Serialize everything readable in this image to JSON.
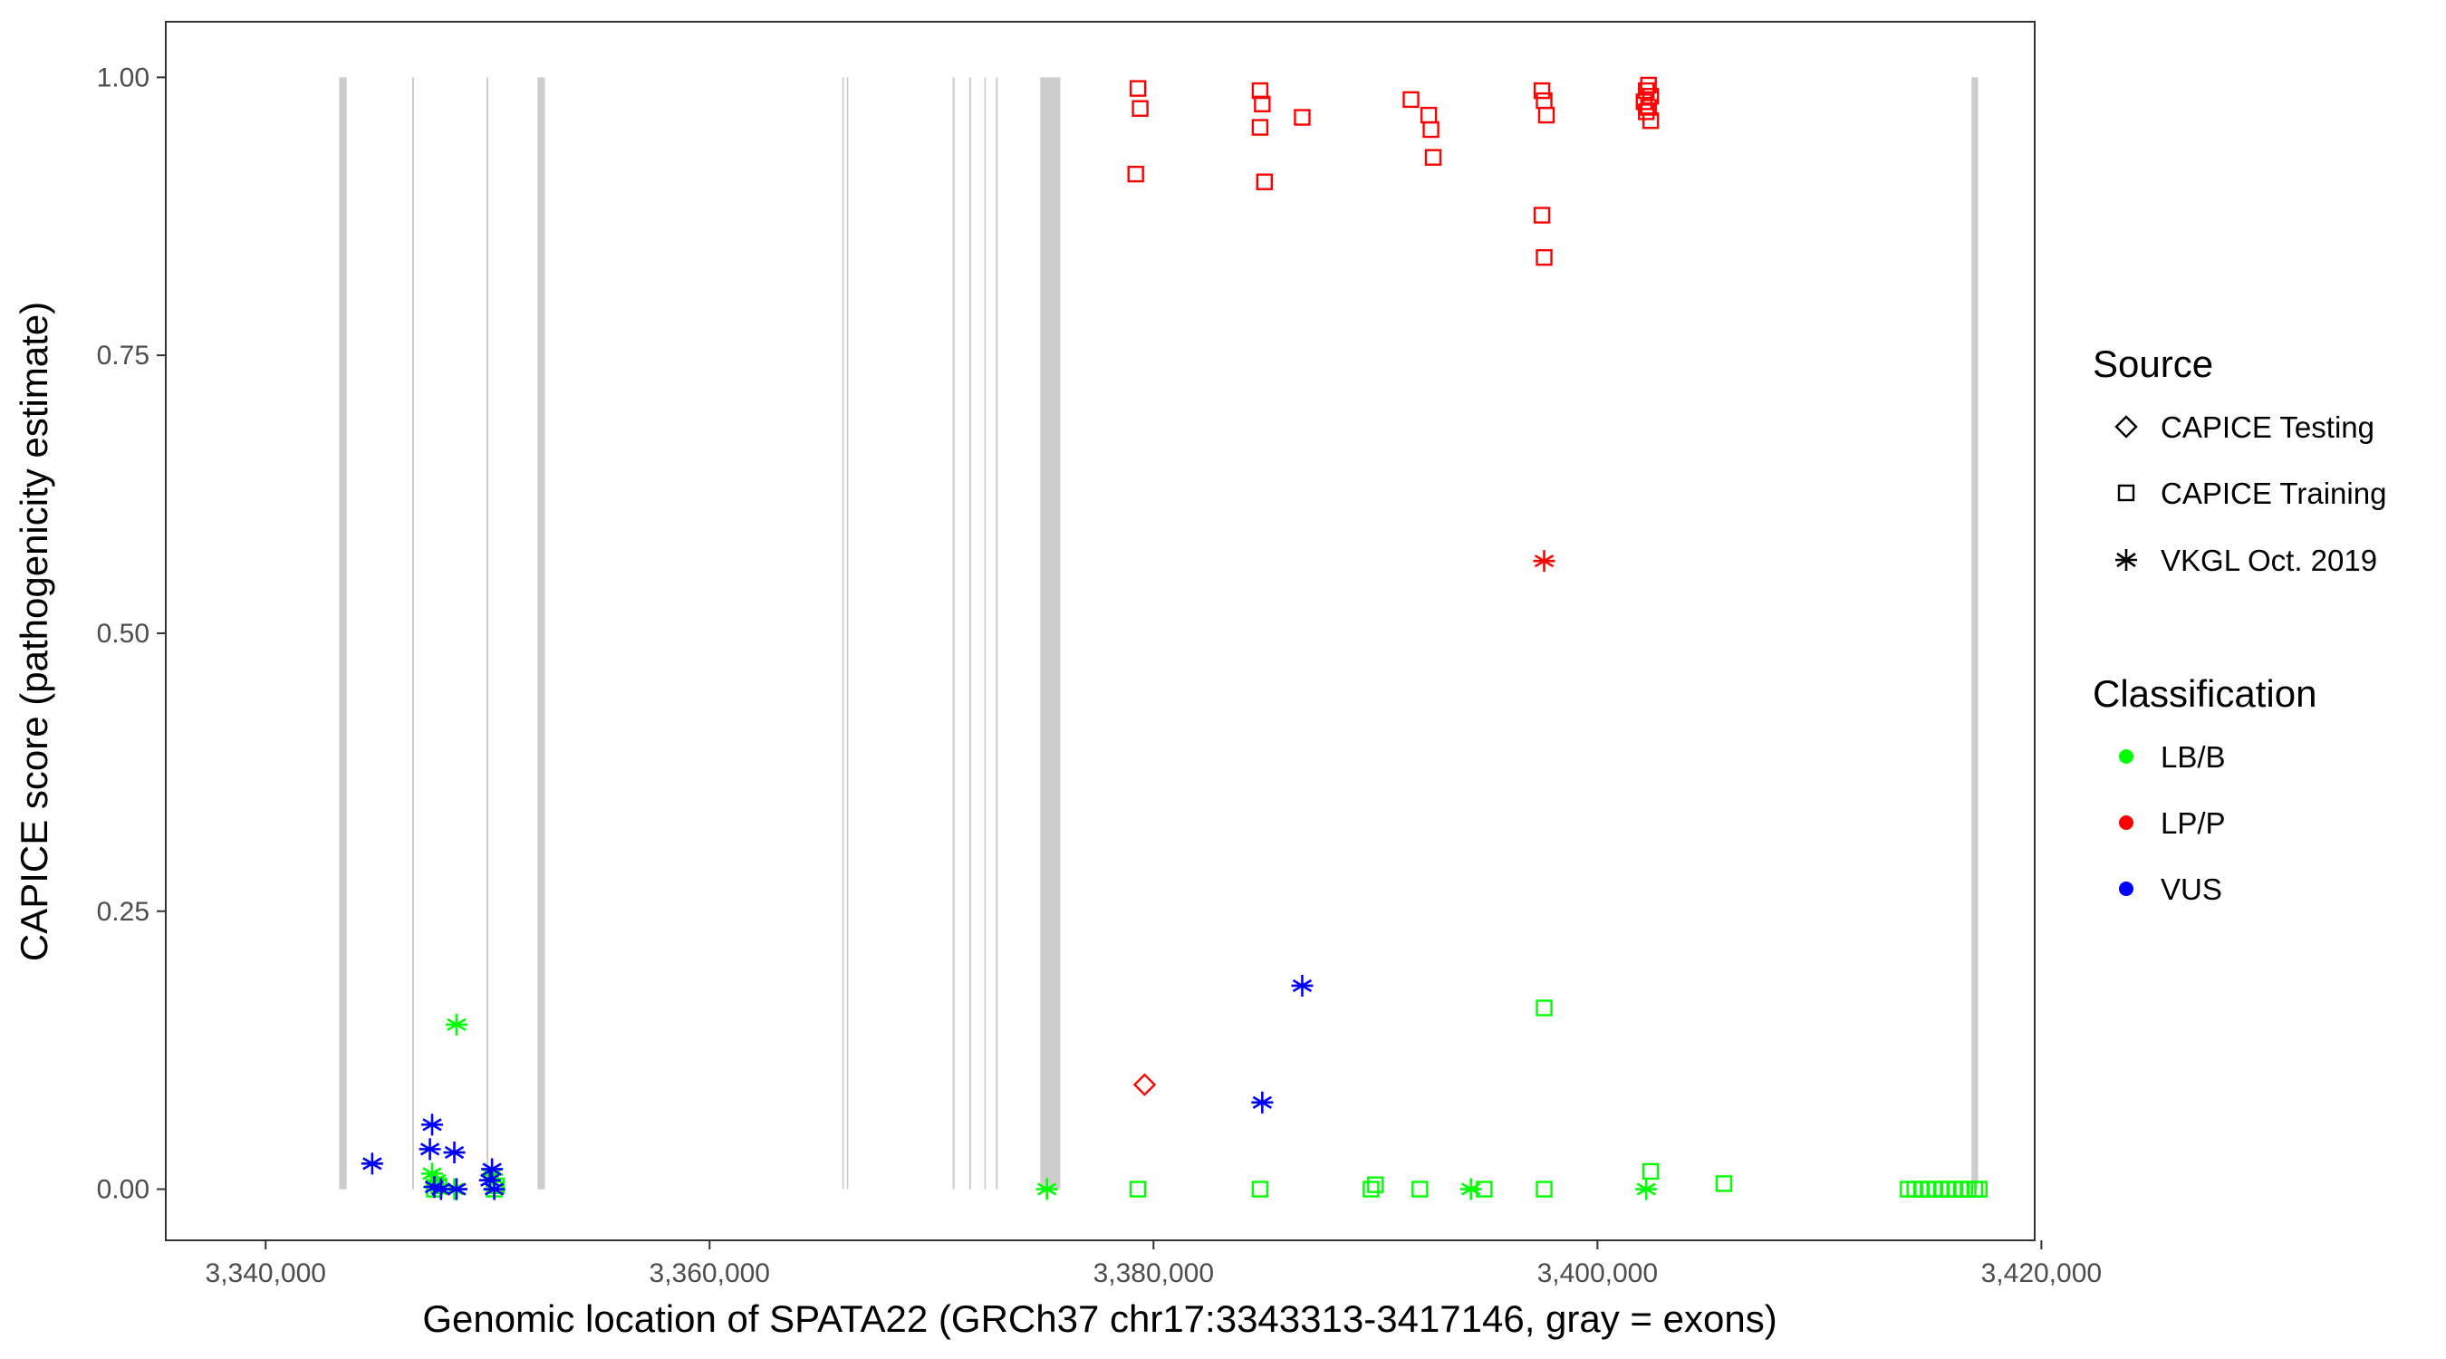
{
  "chart_data": {
    "type": "scatter",
    "title": "",
    "xlabel": "Genomic location of SPATA22 (GRCh37 chr17:3343313-3417146, gray = exons)",
    "ylabel": "CAPICE score (pathogenicity estimate)",
    "xlim": [
      3335500,
      3419700
    ],
    "ylim": [
      -0.046,
      1.05
    ],
    "x_ticks": [
      3340000,
      3360000,
      3380000,
      3400000,
      3420000
    ],
    "x_tick_labels": [
      "3,340,000",
      "3,360,000",
      "3,380,000",
      "3,400,000",
      "3,420,000"
    ],
    "y_ticks": [
      0,
      0.25,
      0.5,
      0.75,
      1.0
    ],
    "y_tick_labels": [
      "0.00",
      "0.25",
      "0.50",
      "0.75",
      "1.00"
    ],
    "grid": false,
    "exons": [
      [
        3343313,
        3343650
      ],
      [
        3346600,
        3346680
      ],
      [
        3349950,
        3350030
      ],
      [
        3352250,
        3352580
      ],
      [
        3365980,
        3366050
      ],
      [
        3366180,
        3366250
      ],
      [
        3370950,
        3371030
      ],
      [
        3371700,
        3371780
      ],
      [
        3372380,
        3372450
      ],
      [
        3372900,
        3372980
      ],
      [
        3374900,
        3375800
      ],
      [
        3416850,
        3417146
      ]
    ],
    "exon_color": "#cccccc",
    "legend_position": "right",
    "legend": {
      "source_title": "Source",
      "source_items": [
        {
          "label": "CAPICE Testing",
          "shape": "diamond"
        },
        {
          "label": "CAPICE Training",
          "shape": "square"
        },
        {
          "label": "VKGL Oct. 2019",
          "shape": "asterisk"
        }
      ],
      "class_title": "Classification",
      "class_items": [
        {
          "label": "LB/B",
          "color": "#00ff00"
        },
        {
          "label": "LP/P",
          "color": "#ff0000"
        },
        {
          "label": "VUS",
          "color": "#0000ff"
        }
      ]
    },
    "series": [
      {
        "source": "CAPICE Testing",
        "classification": "LP/P",
        "shape": "diamond",
        "color": "#ff0000",
        "points": [
          [
            3379600,
            0.094
          ]
        ]
      },
      {
        "source": "CAPICE Training",
        "classification": "LP/P",
        "shape": "square",
        "color": "#ff0000",
        "points": [
          [
            3379300,
            0.99
          ],
          [
            3379400,
            0.972
          ],
          [
            3379200,
            0.913
          ],
          [
            3384800,
            0.988
          ],
          [
            3384900,
            0.976
          ],
          [
            3384800,
            0.955
          ],
          [
            3385000,
            0.906
          ],
          [
            3386700,
            0.964
          ],
          [
            3391600,
            0.98
          ],
          [
            3392400,
            0.966
          ],
          [
            3392500,
            0.953
          ],
          [
            3392600,
            0.928
          ],
          [
            3397500,
            0.988
          ],
          [
            3397600,
            0.979
          ],
          [
            3397700,
            0.966
          ],
          [
            3397500,
            0.876
          ],
          [
            3397600,
            0.838
          ],
          [
            3402300,
            0.993
          ],
          [
            3402200,
            0.988
          ],
          [
            3402400,
            0.983
          ],
          [
            3402100,
            0.978
          ],
          [
            3402300,
            0.973
          ],
          [
            3402200,
            0.969
          ],
          [
            3402400,
            0.961
          ]
        ]
      },
      {
        "source": "CAPICE Training",
        "classification": "LB/B",
        "shape": "square",
        "color": "#00ff00",
        "points": [
          [
            3347600,
            0.0
          ],
          [
            3347800,
            0.003
          ],
          [
            3350300,
            0.0
          ],
          [
            3350400,
            0.003
          ],
          [
            3379300,
            0.0
          ],
          [
            3384800,
            0.0
          ],
          [
            3389800,
            0.0
          ],
          [
            3390000,
            0.004
          ],
          [
            3392000,
            0.0
          ],
          [
            3394900,
            0.0
          ],
          [
            3397600,
            0.0
          ],
          [
            3397600,
            0.163
          ],
          [
            3402400,
            0.016
          ],
          [
            3405700,
            0.005
          ],
          [
            3414000,
            0.0
          ],
          [
            3414300,
            0.0
          ],
          [
            3414600,
            0.0
          ],
          [
            3414900,
            0.0
          ],
          [
            3415200,
            0.0
          ],
          [
            3415500,
            0.0
          ],
          [
            3415800,
            0.0
          ],
          [
            3416100,
            0.0
          ],
          [
            3416400,
            0.0
          ],
          [
            3416700,
            0.0
          ],
          [
            3417000,
            0.0
          ],
          [
            3417200,
            0.0
          ]
        ]
      },
      {
        "source": "VKGL Oct. 2019",
        "classification": "LB/B",
        "shape": "asterisk",
        "color": "#00ff00",
        "points": [
          [
            3348600,
            0.148
          ],
          [
            3347500,
            0.014
          ],
          [
            3347700,
            0.008
          ],
          [
            3348500,
            0.0
          ],
          [
            3350200,
            0.013
          ],
          [
            3375200,
            0.0
          ],
          [
            3394300,
            0.0
          ],
          [
            3402200,
            0.0
          ]
        ]
      },
      {
        "source": "VKGL Oct. 2019",
        "classification": "LP/P",
        "shape": "asterisk",
        "color": "#ff0000",
        "points": [
          [
            3397600,
            0.565
          ]
        ]
      },
      {
        "source": "VKGL Oct. 2019",
        "classification": "VUS",
        "shape": "asterisk",
        "color": "#0000ff",
        "points": [
          [
            3344800,
            0.023
          ],
          [
            3347500,
            0.058
          ],
          [
            3347400,
            0.036
          ],
          [
            3348500,
            0.033
          ],
          [
            3350200,
            0.018
          ],
          [
            3350100,
            0.008
          ],
          [
            3347600,
            0.002
          ],
          [
            3347900,
            0.0
          ],
          [
            3348600,
            0.0
          ],
          [
            3350300,
            0.0
          ],
          [
            3384900,
            0.078
          ],
          [
            3386700,
            0.183
          ]
        ]
      }
    ]
  }
}
